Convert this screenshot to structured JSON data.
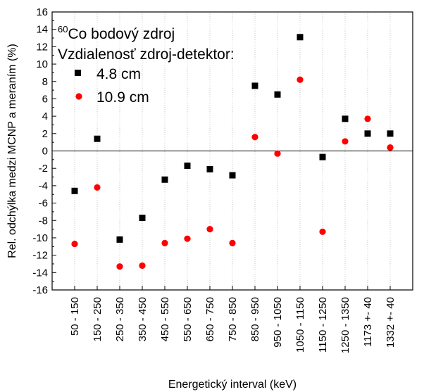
{
  "chart_data": {
    "type": "scatter",
    "title": "",
    "xlabel": "Energetický interval (keV)",
    "ylabel": "Rel. odchýlka medzi MCNP a meraním (%)",
    "ylim": [
      -16,
      16
    ],
    "yticks": [
      -16,
      -14,
      -12,
      -10,
      -8,
      -6,
      -4,
      -2,
      0,
      2,
      4,
      6,
      8,
      10,
      12,
      14,
      16
    ],
    "categories": [
      "50 - 150",
      "150 - 250",
      "250 - 350",
      "350 - 450",
      "450 - 550",
      "550 - 650",
      "650 - 750",
      "750 - 850",
      "850 - 950",
      "950 - 1050",
      "1050 - 1150",
      "1150 - 1250",
      "1250 - 1350",
      "1173 +- 40",
      "1332 +- 40"
    ],
    "grid": "vertical-dotted",
    "reference_line": 0,
    "legend": {
      "placement": "top-left",
      "header_superscript": "60",
      "header_main": "Co bodový zdroj",
      "header_line2": "Vzdialenosť zdroj-detektor:"
    },
    "series": [
      {
        "name": "4.8 cm",
        "marker": "square",
        "color": "#000000",
        "values": [
          -4.6,
          1.4,
          -10.2,
          -7.7,
          -3.3,
          -1.7,
          -2.1,
          -2.8,
          7.5,
          6.5,
          13.1,
          -0.7,
          3.7,
          2.0,
          2.0
        ]
      },
      {
        "name": "10.9 cm",
        "marker": "circle",
        "color": "#ff0000",
        "values": [
          -10.7,
          -4.2,
          -13.3,
          -13.2,
          -10.6,
          -10.1,
          -9.0,
          -10.6,
          1.6,
          -0.3,
          8.2,
          -9.3,
          1.1,
          3.7,
          0.4
        ]
      }
    ]
  }
}
